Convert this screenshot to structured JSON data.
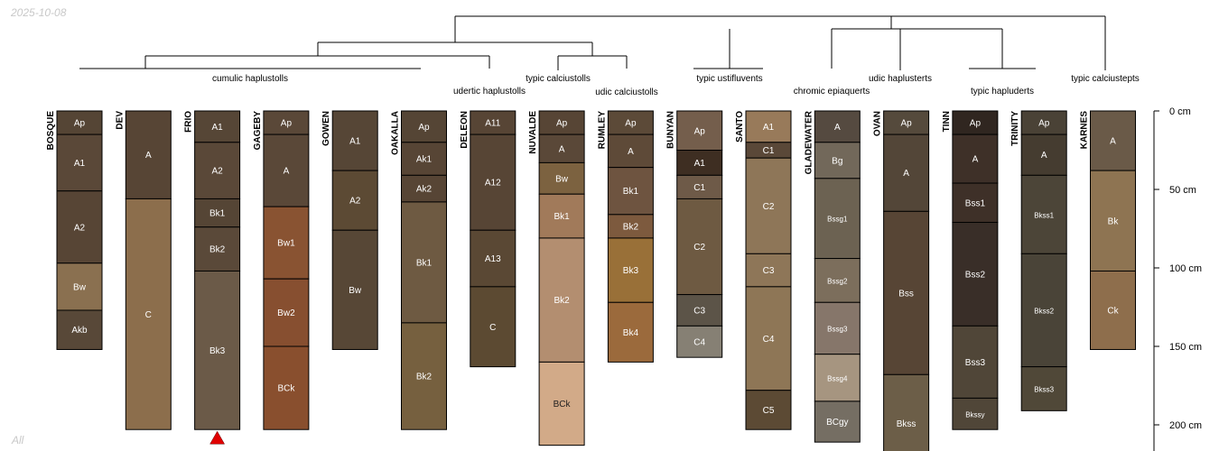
{
  "date_stamp": "2025-10-08",
  "corner_note": "All",
  "depth_unit": "cm",
  "depth_axis": {
    "max_cm": 230,
    "ticks": [
      0,
      50,
      100,
      150,
      200
    ]
  },
  "colors": {
    "line": "#000000",
    "label_light": "#ffffff",
    "label_dark": "#1e1e1e",
    "marker": "#e00000"
  },
  "profiles": [
    {
      "id": "BOSQUE",
      "horizons": [
        {
          "name": "Ap",
          "top": 0,
          "bottom": 15,
          "color": "#554535"
        },
        {
          "name": "A1",
          "top": 15,
          "bottom": 51,
          "color": "#5a4838"
        },
        {
          "name": "A2",
          "top": 51,
          "bottom": 97,
          "color": "#574535"
        },
        {
          "name": "Bw",
          "top": 97,
          "bottom": 127,
          "color": "#8a7050"
        },
        {
          "name": "Akb",
          "top": 127,
          "bottom": 152,
          "color": "#584838"
        }
      ]
    },
    {
      "id": "DEV",
      "horizons": [
        {
          "name": "A",
          "top": 0,
          "bottom": 56,
          "color": "#574535"
        },
        {
          "name": "C",
          "top": 56,
          "bottom": 203,
          "color": "#8c6e4c"
        }
      ]
    },
    {
      "id": "FRIO",
      "marker": true,
      "horizons": [
        {
          "name": "A1",
          "top": 0,
          "bottom": 20,
          "color": "#564636"
        },
        {
          "name": "A2",
          "top": 20,
          "bottom": 56,
          "color": "#5a4838"
        },
        {
          "name": "Bk1",
          "top": 56,
          "bottom": 74,
          "color": "#554535"
        },
        {
          "name": "Bk2",
          "top": 74,
          "bottom": 102,
          "color": "#5a4939"
        },
        {
          "name": "Bk3",
          "top": 102,
          "bottom": 203,
          "color": "#6b5a48"
        }
      ]
    },
    {
      "id": "GAGEBY",
      "horizons": [
        {
          "name": "Ap",
          "top": 0,
          "bottom": 15,
          "color": "#5a4838"
        },
        {
          "name": "A",
          "top": 15,
          "bottom": 61,
          "color": "#5a4838"
        },
        {
          "name": "Bw1",
          "top": 61,
          "bottom": 107,
          "color": "#895332"
        },
        {
          "name": "Bw2",
          "top": 107,
          "bottom": 150,
          "color": "#874f30"
        },
        {
          "name": "BCk",
          "top": 150,
          "bottom": 203,
          "color": "#894f2e"
        }
      ]
    },
    {
      "id": "GOWEN",
      "horizons": [
        {
          "name": "A1",
          "top": 0,
          "bottom": 38,
          "color": "#564636"
        },
        {
          "name": "A2",
          "top": 38,
          "bottom": 76,
          "color": "#5c4a34"
        },
        {
          "name": "Bw",
          "top": 76,
          "bottom": 152,
          "color": "#574736"
        }
      ]
    },
    {
      "id": "OAKALLA",
      "horizons": [
        {
          "name": "Ap",
          "top": 0,
          "bottom": 20,
          "color": "#554535"
        },
        {
          "name": "Ak1",
          "top": 20,
          "bottom": 41,
          "color": "#574535"
        },
        {
          "name": "Ak2",
          "top": 41,
          "bottom": 58,
          "color": "#574535"
        },
        {
          "name": "Bk1",
          "top": 58,
          "bottom": 135,
          "color": "#6e5a42"
        },
        {
          "name": "Bk2",
          "top": 135,
          "bottom": 203,
          "color": "#76603f"
        }
      ]
    },
    {
      "id": "DELEON",
      "horizons": [
        {
          "name": "A11",
          "top": 0,
          "bottom": 15,
          "color": "#574535"
        },
        {
          "name": "A12",
          "top": 15,
          "bottom": 76,
          "color": "#574535"
        },
        {
          "name": "A13",
          "top": 76,
          "bottom": 112,
          "color": "#5a4834"
        },
        {
          "name": "C",
          "top": 112,
          "bottom": 163,
          "color": "#5c4a32"
        }
      ]
    },
    {
      "id": "NUVALDE",
      "horizons": [
        {
          "name": "Ap",
          "top": 0,
          "bottom": 15,
          "color": "#574535"
        },
        {
          "name": "A",
          "top": 15,
          "bottom": 33,
          "color": "#5a4838"
        },
        {
          "name": "Bw",
          "top": 33,
          "bottom": 53,
          "color": "#7c6240"
        },
        {
          "name": "Bk1",
          "top": 53,
          "bottom": 81,
          "color": "#a17a5a"
        },
        {
          "name": "Bk2",
          "top": 81,
          "bottom": 160,
          "color": "#b38e70"
        },
        {
          "name": "BCk",
          "top": 160,
          "bottom": 213,
          "color": "#d2aa88"
        }
      ]
    },
    {
      "id": "RUMLEY",
      "horizons": [
        {
          "name": "Ap",
          "top": 0,
          "bottom": 15,
          "color": "#5c4a38"
        },
        {
          "name": "A",
          "top": 15,
          "bottom": 36,
          "color": "#5e4a38"
        },
        {
          "name": "Bk1",
          "top": 36,
          "bottom": 66,
          "color": "#6e5440"
        },
        {
          "name": "Bk2",
          "top": 66,
          "bottom": 81,
          "color": "#7d5a3e"
        },
        {
          "name": "Bk3",
          "top": 81,
          "bottom": 122,
          "color": "#997038"
        },
        {
          "name": "Bk4",
          "top": 122,
          "bottom": 160,
          "color": "#9b6a3c"
        }
      ]
    },
    {
      "id": "BUNYAN",
      "horizons": [
        {
          "name": "Ap",
          "top": 0,
          "bottom": 25,
          "color": "#745e4c"
        },
        {
          "name": "A1",
          "top": 25,
          "bottom": 41,
          "color": "#3e2e22"
        },
        {
          "name": "C1",
          "top": 41,
          "bottom": 56,
          "color": "#6e5a48"
        },
        {
          "name": "C2",
          "top": 56,
          "bottom": 117,
          "color": "#6e5a42"
        },
        {
          "name": "C3",
          "top": 117,
          "bottom": 137,
          "color": "#5c5448"
        },
        {
          "name": "C4",
          "top": 137,
          "bottom": 157,
          "color": "#868074"
        }
      ]
    },
    {
      "id": "SANTO",
      "horizons": [
        {
          "name": "A1",
          "top": 0,
          "bottom": 20,
          "color": "#987a5a"
        },
        {
          "name": "C1",
          "top": 20,
          "bottom": 30,
          "color": "#5a4838"
        },
        {
          "name": "C2",
          "top": 30,
          "bottom": 91,
          "color": "#8e7658"
        },
        {
          "name": "C3",
          "top": 91,
          "bottom": 112,
          "color": "#8e7658"
        },
        {
          "name": "C4",
          "top": 112,
          "bottom": 178,
          "color": "#8e7656"
        },
        {
          "name": "C5",
          "top": 178,
          "bottom": 203,
          "color": "#5c4a34"
        }
      ]
    },
    {
      "id": "GLADEWATER",
      "horizons": [
        {
          "name": "A",
          "top": 0,
          "bottom": 20,
          "color": "#554a40"
        },
        {
          "name": "Bg",
          "top": 20,
          "bottom": 43,
          "color": "#72685a"
        },
        {
          "name": "Bssg1",
          "top": 43,
          "bottom": 94,
          "color": "#6c6252"
        },
        {
          "name": "Bssg2",
          "top": 94,
          "bottom": 122,
          "color": "#7c6e5c"
        },
        {
          "name": "Bssg3",
          "top": 122,
          "bottom": 155,
          "color": "#86766a"
        },
        {
          "name": "Bssg4",
          "top": 155,
          "bottom": 185,
          "color": "#a69580"
        },
        {
          "name": "BCgy",
          "top": 185,
          "bottom": 211,
          "color": "#756e63"
        }
      ]
    },
    {
      "id": "OVAN",
      "horizons": [
        {
          "name": "Ap",
          "top": 0,
          "bottom": 15,
          "color": "#554a3c"
        },
        {
          "name": "A",
          "top": 15,
          "bottom": 64,
          "color": "#534638"
        },
        {
          "name": "Bss",
          "top": 64,
          "bottom": 168,
          "color": "#574535"
        },
        {
          "name": "Bkss",
          "top": 168,
          "bottom": 230,
          "color": "#6c5e48"
        }
      ]
    },
    {
      "id": "TINN",
      "horizons": [
        {
          "name": "Ap",
          "top": 0,
          "bottom": 15,
          "color": "#302620"
        },
        {
          "name": "A",
          "top": 15,
          "bottom": 46,
          "color": "#3e3028"
        },
        {
          "name": "Bss1",
          "top": 46,
          "bottom": 71,
          "color": "#3e3028"
        },
        {
          "name": "Bss2",
          "top": 71,
          "bottom": 137,
          "color": "#392e28"
        },
        {
          "name": "Bss3",
          "top": 137,
          "bottom": 183,
          "color": "#504638"
        },
        {
          "name": "Bkssy",
          "top": 183,
          "bottom": 203,
          "color": "#504638"
        }
      ]
    },
    {
      "id": "TRINITY",
      "horizons": [
        {
          "name": "Ap",
          "top": 0,
          "bottom": 15,
          "color": "#4a4236"
        },
        {
          "name": "A",
          "top": 15,
          "bottom": 41,
          "color": "#453c30"
        },
        {
          "name": "Bkss1",
          "top": 41,
          "bottom": 91,
          "color": "#4c4538"
        },
        {
          "name": "Bkss2",
          "top": 91,
          "bottom": 163,
          "color": "#4a4438"
        },
        {
          "name": "Bkss3",
          "top": 163,
          "bottom": 191,
          "color": "#504838"
        }
      ]
    },
    {
      "id": "KARNES",
      "horizons": [
        {
          "name": "A",
          "top": 0,
          "bottom": 38,
          "color": "#6a5a48"
        },
        {
          "name": "Bk",
          "top": 38,
          "bottom": 102,
          "color": "#8e7452"
        },
        {
          "name": "Ck",
          "top": 102,
          "bottom": 152,
          "color": "#8e6e4c"
        }
      ]
    }
  ],
  "taxa_labels": [
    "cumulic haplustolls",
    "typic calciustolls",
    "udertic haplustolls",
    "udic calciustolls",
    "typic ustifluvents",
    "chromic epiaquerts",
    "udic haplusterts",
    "typic hapluderts",
    "typic calciustepts"
  ]
}
